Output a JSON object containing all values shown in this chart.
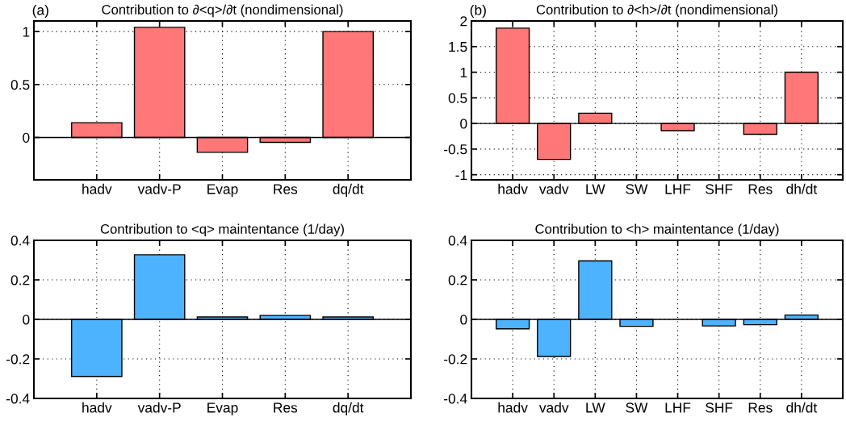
{
  "chart_data": [
    {
      "type": "bar",
      "title": "Contribution to ∂<q>/∂t (nondimensional)",
      "annotations": [
        "(a)"
      ],
      "categories": [
        "hadv",
        "vadv-P",
        "Evap",
        "Res",
        "dq/dt"
      ],
      "values": [
        0.14,
        1.04,
        -0.14,
        -0.046,
        1.0
      ],
      "color": "#ff7777",
      "ylim": [
        -0.4,
        1.1
      ],
      "yticks": [
        0,
        0.5,
        1
      ],
      "grid": true
    },
    {
      "type": "bar",
      "title": "Contribution to ∂<h>/∂t (nondimensional)",
      "annotations": [
        "(b)"
      ],
      "categories": [
        "hadv",
        "vadv",
        "LW",
        "SW",
        "LHF",
        "SHF",
        "Res",
        "dh/dt"
      ],
      "values": [
        1.86,
        -0.7,
        0.2,
        null,
        -0.14,
        null,
        -0.21,
        1.0
      ],
      "color": "#ff7777",
      "ylim": [
        -1.1,
        2
      ],
      "yticks": [
        -1,
        -0.5,
        0,
        0.5,
        1,
        1.5,
        2
      ],
      "grid": true
    },
    {
      "type": "bar",
      "title": "Contribution to <q> maintentance (1/day)",
      "categories": [
        "hadv",
        "vadv-P",
        "Evap",
        "Res",
        "dq/dt"
      ],
      "values": [
        -0.289,
        0.327,
        0.012,
        0.02,
        0.012
      ],
      "color": "#4db3ff",
      "ylim": [
        -0.4,
        0.4
      ],
      "yticks": [
        -0.4,
        -0.2,
        0,
        0.2,
        0.4
      ],
      "grid": true
    },
    {
      "type": "bar",
      "title": "Contribution to <h> maintentance (1/day)",
      "categories": [
        "hadv",
        "vadv",
        "LW",
        "SW",
        "LHF",
        "SHF",
        "Res",
        "dh/dt"
      ],
      "values": [
        -0.048,
        -0.188,
        0.296,
        -0.035,
        null,
        -0.033,
        -0.027,
        0.022
      ],
      "color": "#4db3ff",
      "ylim": [
        -0.4,
        0.4
      ],
      "yticks": [
        -0.4,
        -0.2,
        0,
        0.2,
        0.4
      ],
      "grid": true
    }
  ]
}
